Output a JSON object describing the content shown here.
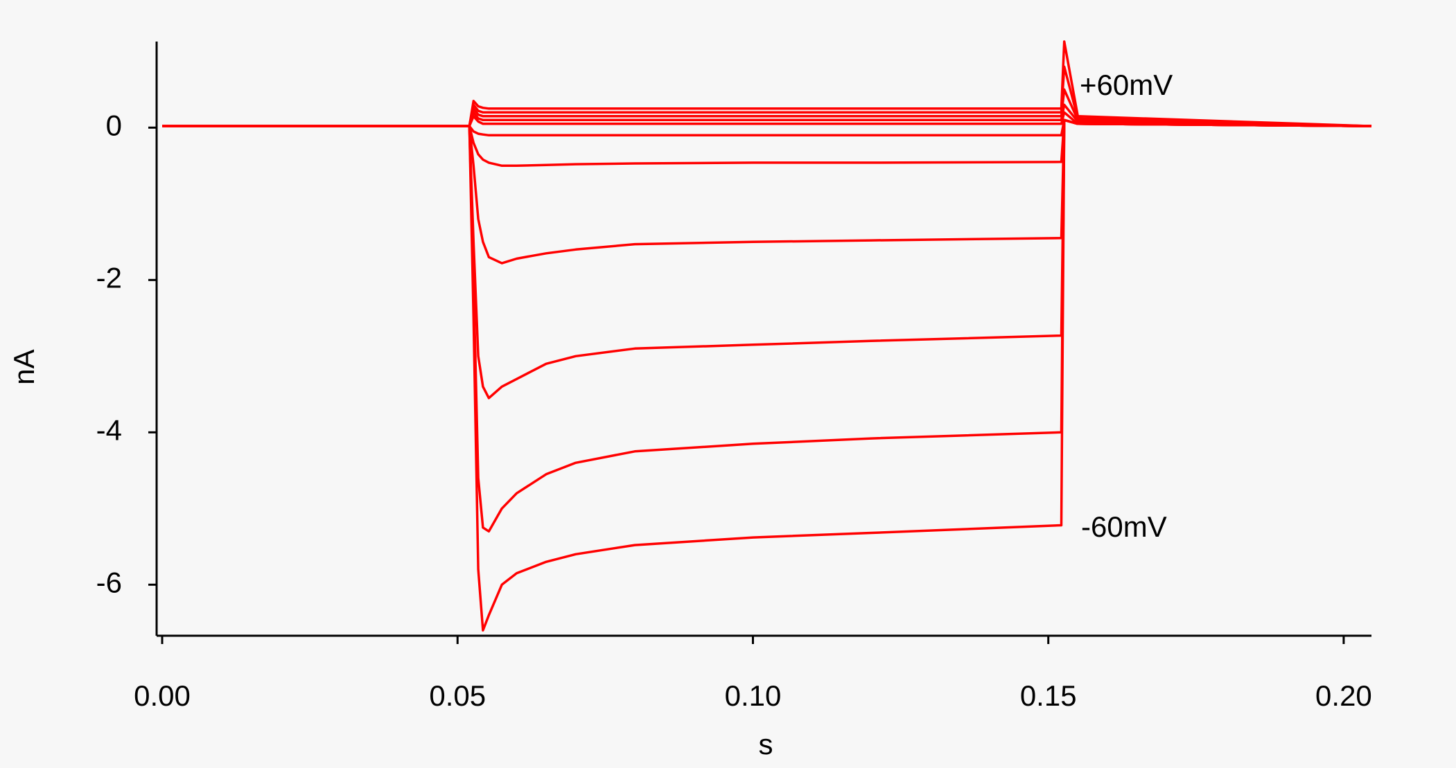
{
  "chart_data": {
    "type": "line",
    "x_label": "s",
    "y_label": "nA",
    "annotations": [
      "+60mV",
      "-60mV"
    ],
    "x": [
      0,
      0.052,
      0.0527,
      0.0535,
      0.0543,
      0.0553,
      0.0575,
      0.06,
      0.065,
      0.07,
      0.08,
      0.1,
      0.12,
      0.1522,
      0.1527,
      0.155,
      0.2047
    ],
    "series": [
      {
        "color": "#ff0000",
        "values": [
          0.02,
          0.02,
          -2.5,
          -5.8,
          -6.6,
          -6.4,
          -6.0,
          -5.85,
          -5.7,
          -5.6,
          -5.48,
          -5.38,
          -5.32,
          -5.22,
          0.1,
          0.05,
          0.02
        ]
      },
      {
        "color": "#ff0000",
        "values": [
          0.02,
          0.02,
          -2.0,
          -4.6,
          -5.25,
          -5.3,
          -5.0,
          -4.8,
          -4.55,
          -4.4,
          -4.25,
          -4.15,
          -4.08,
          -4.0,
          0.1,
          0.05,
          0.02
        ]
      },
      {
        "color": "#ff0000",
        "values": [
          0.02,
          0.02,
          -1.5,
          -3.0,
          -3.4,
          -3.55,
          -3.4,
          -3.3,
          -3.1,
          -3.0,
          -2.9,
          -2.85,
          -2.8,
          -2.73,
          0.1,
          0.05,
          0.02
        ]
      },
      {
        "color": "#ff0000",
        "values": [
          0.02,
          0.02,
          -0.5,
          -1.2,
          -1.5,
          -1.7,
          -1.78,
          -1.72,
          -1.65,
          -1.6,
          -1.53,
          -1.5,
          -1.48,
          -1.45,
          0.1,
          0.05,
          0.02
        ]
      },
      {
        "color": "#ff0000",
        "values": [
          0.02,
          0.02,
          -0.2,
          -0.35,
          -0.42,
          -0.46,
          -0.5,
          -0.5,
          -0.49,
          -0.48,
          -0.47,
          -0.46,
          -0.46,
          -0.45,
          0.1,
          0.05,
          0.02
        ]
      },
      {
        "color": "#ff0000",
        "values": [
          0.02,
          0.02,
          -0.05,
          -0.08,
          -0.09,
          -0.1,
          -0.1,
          -0.1,
          -0.1,
          -0.1,
          -0.1,
          -0.1,
          -0.1,
          -0.1,
          0.1,
          0.05,
          0.02
        ]
      },
      {
        "color": "#ff0000",
        "values": [
          0.02,
          0.02,
          0.15,
          0.08,
          0.05,
          0.05,
          0.05,
          0.05,
          0.05,
          0.05,
          0.05,
          0.05,
          0.05,
          0.05,
          0.2,
          0.05,
          0.02
        ]
      },
      {
        "color": "#ff0000",
        "values": [
          0.02,
          0.02,
          0.2,
          0.12,
          0.1,
          0.1,
          0.1,
          0.1,
          0.1,
          0.1,
          0.1,
          0.1,
          0.1,
          0.1,
          0.3,
          0.08,
          0.02
        ]
      },
      {
        "color": "#ff0000",
        "values": [
          0.02,
          0.02,
          0.25,
          0.17,
          0.15,
          0.15,
          0.15,
          0.15,
          0.15,
          0.15,
          0.15,
          0.15,
          0.15,
          0.15,
          0.5,
          0.1,
          0.02
        ]
      },
      {
        "color": "#ff0000",
        "values": [
          0.02,
          0.02,
          0.3,
          0.22,
          0.2,
          0.2,
          0.2,
          0.2,
          0.2,
          0.2,
          0.2,
          0.2,
          0.2,
          0.2,
          0.8,
          0.12,
          0.02
        ]
      },
      {
        "color": "#ff0000",
        "values": [
          0.02,
          0.02,
          0.35,
          0.28,
          0.26,
          0.25,
          0.25,
          0.25,
          0.25,
          0.25,
          0.25,
          0.25,
          0.25,
          0.25,
          1.13,
          0.15,
          0.02
        ]
      }
    ],
    "xlim": [
      -0.00094,
      0.2047
    ],
    "ylim": [
      -6.67,
      1.13
    ],
    "xticks": [
      {
        "value": 0,
        "label": "0.00"
      },
      0.05,
      {
        "value": 0.1,
        "label": "0.10"
      },
      0.15,
      {
        "value": 0.2,
        "label": "0.20"
      }
    ],
    "yticks": [
      0,
      -2,
      -4,
      -6
    ],
    "grid": false
  }
}
